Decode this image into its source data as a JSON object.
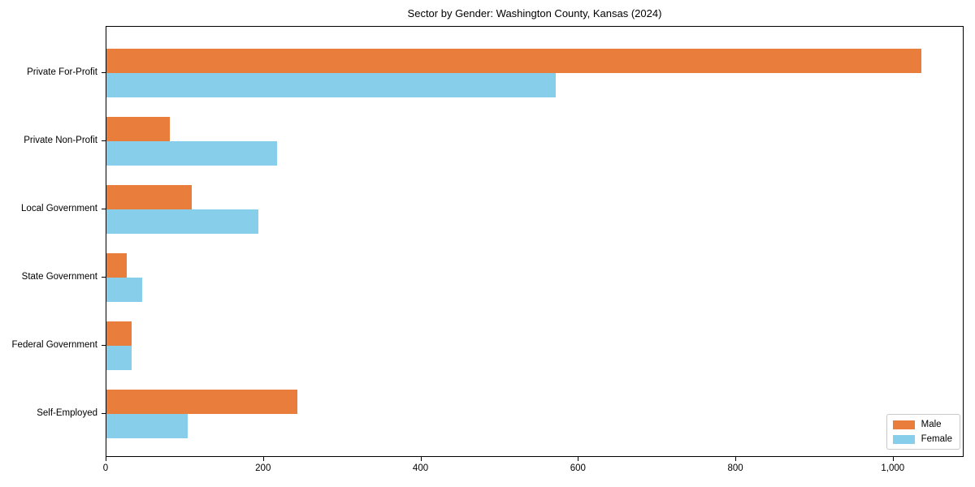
{
  "chart_data": {
    "type": "bar",
    "orientation": "horizontal",
    "title": "Sector by Gender: Washington County, Kansas (2024)",
    "xlabel": "",
    "ylabel": "",
    "categories": [
      "Private For-Profit",
      "Private Non-Profit",
      "Local Government",
      "State Government",
      "Federal Government",
      "Self-Employed"
    ],
    "series": [
      {
        "name": "Male",
        "color": "#e87d3c",
        "values": [
          1035,
          80,
          108,
          26,
          32,
          243
        ]
      },
      {
        "name": "Female",
        "color": "#87ceeb",
        "values": [
          571,
          217,
          193,
          45,
          32,
          103
        ]
      }
    ],
    "xlim": [
      0,
      1090
    ],
    "xticks": [
      0,
      200,
      400,
      600,
      800,
      1000
    ],
    "xtick_labels": [
      "0",
      "200",
      "400",
      "600",
      "800",
      "1,000"
    ],
    "grid": false,
    "legend_position": "lower right",
    "frame": true
  },
  "colors": {
    "male": "#e87d3c",
    "female": "#87ceeb",
    "axis": "#000000",
    "background": "#ffffff",
    "legend_border": "#c9c9c9"
  }
}
